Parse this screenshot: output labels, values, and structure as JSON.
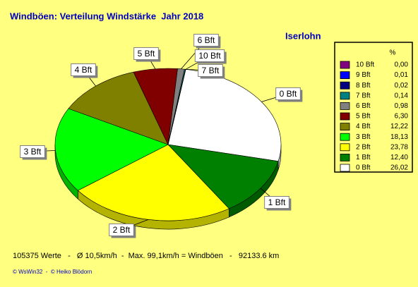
{
  "chart_data": {
    "type": "pie",
    "title": "Windböen: Verteilung Windstärke  Jahr 2018",
    "subtitle": "Iserlohn",
    "legend_header": "%",
    "categories": [
      "10 Bft",
      "9 Bft",
      "8 Bft",
      "7 Bft",
      "6 Bft",
      "5 Bft",
      "4 Bft",
      "3 Bft",
      "2 Bft",
      "1 Bft",
      "0 Bft"
    ],
    "values": [
      0,
      0.01,
      0.02,
      0.14,
      0.98,
      6.3,
      12.22,
      18.13,
      23.78,
      12.4,
      26.02
    ],
    "value_labels": [
      "0,00",
      "0,01",
      "0,02",
      "0,14",
      "0,98",
      "6,30",
      "12,22",
      "18,13",
      "23,78",
      "12,40",
      "26,02"
    ],
    "colors": [
      "#800080",
      "#0000ff",
      "#000080",
      "#008080",
      "#808080",
      "#800000",
      "#808000",
      "#00ff00",
      "#ffff00",
      "#008000",
      "#ffffff"
    ],
    "footer": "105375 Werte   -   Ø 10,5km/h  -  Max. 99,1km/h = Windböen   -   92133.6 km",
    "credits": "© WsWin32  -  © Heiko Blödorn"
  }
}
